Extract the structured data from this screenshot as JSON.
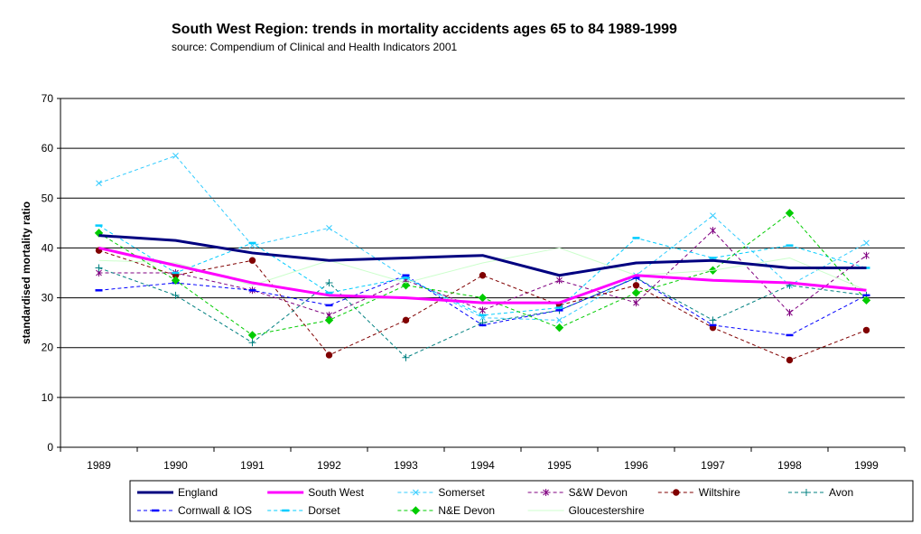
{
  "chart_data": {
    "type": "line",
    "title": "South West Region:  trends in mortality accidents ages 65 to 84 1989-1999",
    "subtitle": "source:  Compendium of Clinical and Health Indicators  2001",
    "xlabel": "",
    "ylabel": "standardised mortality ratio",
    "categories": [
      "1989",
      "1990",
      "1991",
      "1992",
      "1993",
      "1994",
      "1995",
      "1996",
      "1997",
      "1998",
      "1999"
    ],
    "ylim": [
      0,
      70
    ],
    "yticks": [
      "0",
      "10",
      "20",
      "30",
      "40",
      "50",
      "60",
      "70"
    ],
    "grid": "horizontal",
    "legend_position": "bottom",
    "series": [
      {
        "name": "England",
        "color": "#000080",
        "style": "thick",
        "marker": "none",
        "values": [
          42.5,
          41.5,
          39,
          37.5,
          38,
          38.5,
          34.5,
          37,
          37.5,
          36,
          36
        ]
      },
      {
        "name": "South West",
        "color": "#ff00ff",
        "style": "thick",
        "marker": "none",
        "values": [
          40,
          36.5,
          33,
          30.5,
          30,
          29,
          29,
          34.5,
          33.5,
          33,
          31.5
        ]
      },
      {
        "name": "Somerset",
        "color": "#33ccff",
        "style": "dash",
        "marker": "x",
        "values": [
          53,
          58.5,
          40.5,
          44,
          34,
          26,
          25.5,
          34.5,
          46.5,
          32.5,
          41
        ]
      },
      {
        "name": "S&W Devon",
        "color": "#800080",
        "style": "dash",
        "marker": "star",
        "values": [
          35,
          35,
          31.5,
          26.5,
          33.5,
          27.5,
          33.5,
          29,
          43.5,
          27,
          38.5
        ]
      },
      {
        "name": "Wiltshire",
        "color": "#800000",
        "style": "dash",
        "marker": "circle",
        "values": [
          39.5,
          34.5,
          37.5,
          18.5,
          25.5,
          34.5,
          28.5,
          32.5,
          24,
          17.5,
          23.5
        ]
      },
      {
        "name": "Avon",
        "color": "#008080",
        "style": "dash",
        "marker": "plus",
        "values": [
          36,
          30.5,
          21,
          33,
          18,
          25,
          27.5,
          34,
          25.5,
          32.5,
          30.5
        ]
      },
      {
        "name": "Cornwall & IOS",
        "color": "#0000ff",
        "style": "dash",
        "marker": "dash",
        "values": [
          31.5,
          33,
          31.5,
          28.5,
          34.5,
          24.5,
          27.5,
          34,
          24.5,
          22.5,
          30.5
        ]
      },
      {
        "name": "Dorset",
        "color": "#00ccff",
        "style": "dash",
        "marker": "dash",
        "values": [
          44.5,
          35,
          41,
          31,
          34,
          26.5,
          28,
          42,
          38,
          40.5,
          36
        ]
      },
      {
        "name": "N&E Devon",
        "color": "#00cc00",
        "style": "dash",
        "marker": "diamond",
        "values": [
          43,
          33.5,
          22.5,
          25.5,
          32.5,
          30,
          24,
          31,
          35.5,
          47,
          29.5
        ]
      },
      {
        "name": "Gloucestershire",
        "color": "#ccffcc",
        "style": "solid-thin",
        "marker": "none",
        "values": [
          37.5,
          37,
          32.5,
          37.5,
          33,
          37,
          40,
          34.5,
          35.5,
          38,
          31.5
        ]
      }
    ]
  }
}
